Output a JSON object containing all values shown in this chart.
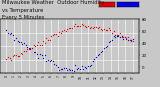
{
  "title": "Milwaukee Weather  Outdoor Humidity",
  "subtitle": "vs Temperature",
  "subtitle2": "Every 5 Minutes",
  "humidity_color": "#0000dd",
  "temp_color": "#dd0000",
  "legend_temp_color": "#dd0000",
  "legend_humidity_color": "#0000dd",
  "background_color": "#c8c8c8",
  "plot_bg_color": "#c8c8c8",
  "grid_color": "#ffffff",
  "ylim_left": [
    20,
    100
  ],
  "ylim_right": [
    -10,
    80
  ],
  "title_fontsize": 3.8,
  "tick_fontsize": 2.8,
  "dot_size": 0.8
}
